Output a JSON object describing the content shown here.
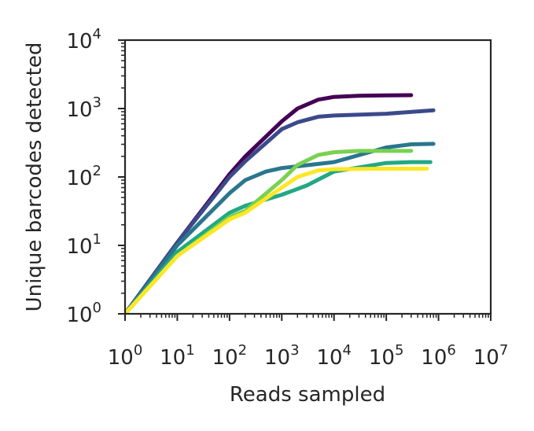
{
  "chart_data": {
    "type": "line",
    "title": "",
    "xlabel": "Reads sampled",
    "ylabel": "Unique barcodes detected",
    "xscale": "log",
    "yscale": "log",
    "xlim": [
      1,
      10000000
    ],
    "ylim": [
      1,
      10000
    ],
    "grid": false,
    "legend": "none",
    "x_ticks": [
      {
        "value": 1,
        "base": "10",
        "exp": "0"
      },
      {
        "value": 10,
        "base": "10",
        "exp": "1"
      },
      {
        "value": 100,
        "base": "10",
        "exp": "2"
      },
      {
        "value": 1000,
        "base": "10",
        "exp": "3"
      },
      {
        "value": 10000,
        "base": "10",
        "exp": "4"
      },
      {
        "value": 100000,
        "base": "10",
        "exp": "5"
      },
      {
        "value": 1000000,
        "base": "10",
        "exp": "6"
      },
      {
        "value": 10000000,
        "base": "10",
        "exp": "7"
      }
    ],
    "y_ticks": [
      {
        "value": 1,
        "base": "10",
        "exp": "0"
      },
      {
        "value": 10,
        "base": "10",
        "exp": "1"
      },
      {
        "value": 100,
        "base": "10",
        "exp": "2"
      },
      {
        "value": 1000,
        "base": "10",
        "exp": "3"
      },
      {
        "value": 10000,
        "base": "10",
        "exp": "4"
      }
    ],
    "series": [
      {
        "color": "#440154",
        "x": [
          1,
          10,
          100,
          200,
          1000,
          2000,
          5000,
          10000,
          30000,
          100000,
          300000
        ],
        "y": [
          1,
          11,
          110,
          200,
          650,
          1000,
          1350,
          1480,
          1540,
          1560,
          1570
        ]
      },
      {
        "color": "#3b4a8a",
        "x": [
          1,
          10,
          100,
          200,
          1000,
          2000,
          5000,
          10000,
          100000,
          800000
        ],
        "y": [
          1,
          11,
          100,
          170,
          500,
          630,
          760,
          790,
          840,
          940
        ]
      },
      {
        "color": "#2a768e",
        "x": [
          1,
          10,
          100,
          200,
          500,
          1000,
          10000,
          100000,
          300000,
          800000
        ],
        "y": [
          1,
          10,
          58,
          90,
          120,
          135,
          165,
          270,
          300,
          305
        ]
      },
      {
        "color": "#22a884",
        "x": [
          1,
          10,
          100,
          200,
          1000,
          3000,
          10000,
          100000,
          300000,
          700000
        ],
        "y": [
          1,
          8,
          30,
          38,
          55,
          75,
          120,
          160,
          165,
          165
        ]
      },
      {
        "color": "#7ad151",
        "x": [
          1,
          10,
          100,
          200,
          1000,
          2000,
          5000,
          10000,
          30000,
          100000,
          300000
        ],
        "y": [
          1,
          7,
          26,
          32,
          90,
          150,
          210,
          230,
          240,
          240,
          240
        ]
      },
      {
        "color": "#fde725",
        "x": [
          1,
          10,
          100,
          200,
          1000,
          2000,
          5000,
          10000,
          100000,
          600000
        ],
        "y": [
          1,
          7,
          24,
          30,
          70,
          100,
          125,
          130,
          132,
          132
        ]
      }
    ]
  }
}
